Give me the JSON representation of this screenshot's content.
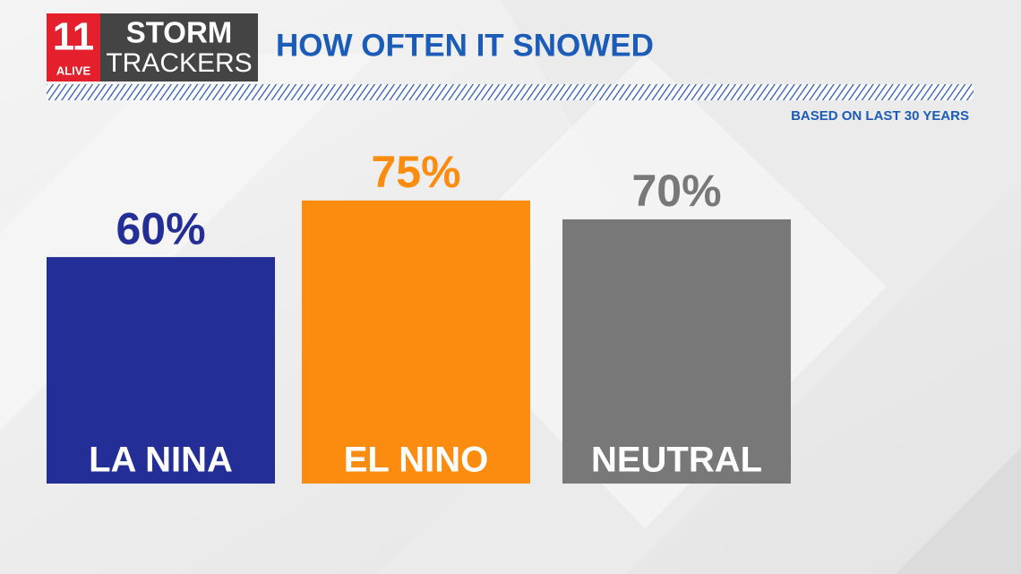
{
  "logo": {
    "number": "11",
    "station": "ALIVE",
    "line1": "STORM",
    "line2": "TRACKERS"
  },
  "chart_data": {
    "type": "bar",
    "title": "HOW OFTEN IT SNOWED",
    "subtitle": "BASED ON LAST 30 YEARS",
    "categories": [
      "LA NINA",
      "EL NINO",
      "NEUTRAL"
    ],
    "values": [
      60,
      75,
      70
    ],
    "value_labels": [
      "60%",
      "75%",
      "70%"
    ],
    "colors": [
      "#232f96",
      "#fb8c0f",
      "#787878"
    ]
  }
}
